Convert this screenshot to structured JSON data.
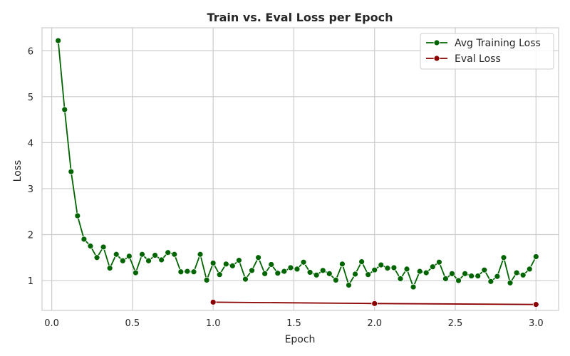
{
  "chart_data": {
    "type": "line",
    "title": "Train vs. Eval Loss per Epoch",
    "xlabel": "Epoch",
    "ylabel": "Loss",
    "xlim": [
      -0.06,
      3.14
    ],
    "ylim": [
      0.35,
      6.5
    ],
    "xticks": [
      "0.0",
      "0.5",
      "1.0",
      "1.5",
      "2.0",
      "2.5",
      "3.0"
    ],
    "yticks": [
      "1",
      "2",
      "3",
      "4",
      "5",
      "6"
    ],
    "grid": true,
    "legend_position": "top-right",
    "series": [
      {
        "name": "Avg Training Loss",
        "color": "#006400",
        "x": [
          0.04,
          0.08,
          0.12,
          0.16,
          0.2,
          0.24,
          0.28,
          0.32,
          0.36,
          0.4,
          0.44,
          0.48,
          0.52,
          0.56,
          0.6,
          0.64,
          0.68,
          0.72,
          0.76,
          0.8,
          0.84,
          0.88,
          0.92,
          0.96,
          1.0,
          1.04,
          1.08,
          1.12,
          1.16,
          1.2,
          1.24,
          1.28,
          1.32,
          1.36,
          1.4,
          1.44,
          1.48,
          1.52,
          1.56,
          1.6,
          1.64,
          1.68,
          1.72,
          1.76,
          1.8,
          1.84,
          1.88,
          1.92,
          1.96,
          2.0,
          2.04,
          2.08,
          2.12,
          2.16,
          2.2,
          2.24,
          2.28,
          2.32,
          2.36,
          2.4,
          2.44,
          2.48,
          2.52,
          2.56,
          2.6,
          2.64,
          2.68,
          2.72,
          2.76,
          2.8,
          2.84,
          2.88,
          2.92,
          2.96,
          3.0
        ],
        "y": [
          6.22,
          4.72,
          3.37,
          2.41,
          1.9,
          1.75,
          1.5,
          1.73,
          1.27,
          1.57,
          1.43,
          1.53,
          1.17,
          1.57,
          1.43,
          1.55,
          1.45,
          1.61,
          1.57,
          1.19,
          1.2,
          1.19,
          1.57,
          1.01,
          1.38,
          1.13,
          1.36,
          1.32,
          1.44,
          1.03,
          1.22,
          1.5,
          1.15,
          1.35,
          1.16,
          1.2,
          1.28,
          1.25,
          1.4,
          1.18,
          1.12,
          1.22,
          1.15,
          1.01,
          1.36,
          0.9,
          1.14,
          1.41,
          1.13,
          1.23,
          1.34,
          1.27,
          1.28,
          1.04,
          1.25,
          0.86,
          1.2,
          1.17,
          1.3,
          1.4,
          1.04,
          1.15,
          1.0,
          1.15,
          1.1,
          1.1,
          1.23,
          0.98,
          1.09,
          1.5,
          0.95,
          1.17,
          1.12,
          1.25,
          1.52
        ]
      },
      {
        "name": "Eval Loss",
        "color": "#8b0000",
        "x": [
          1.0,
          2.0,
          3.0
        ],
        "y": [
          0.53,
          0.5,
          0.48
        ]
      }
    ]
  }
}
